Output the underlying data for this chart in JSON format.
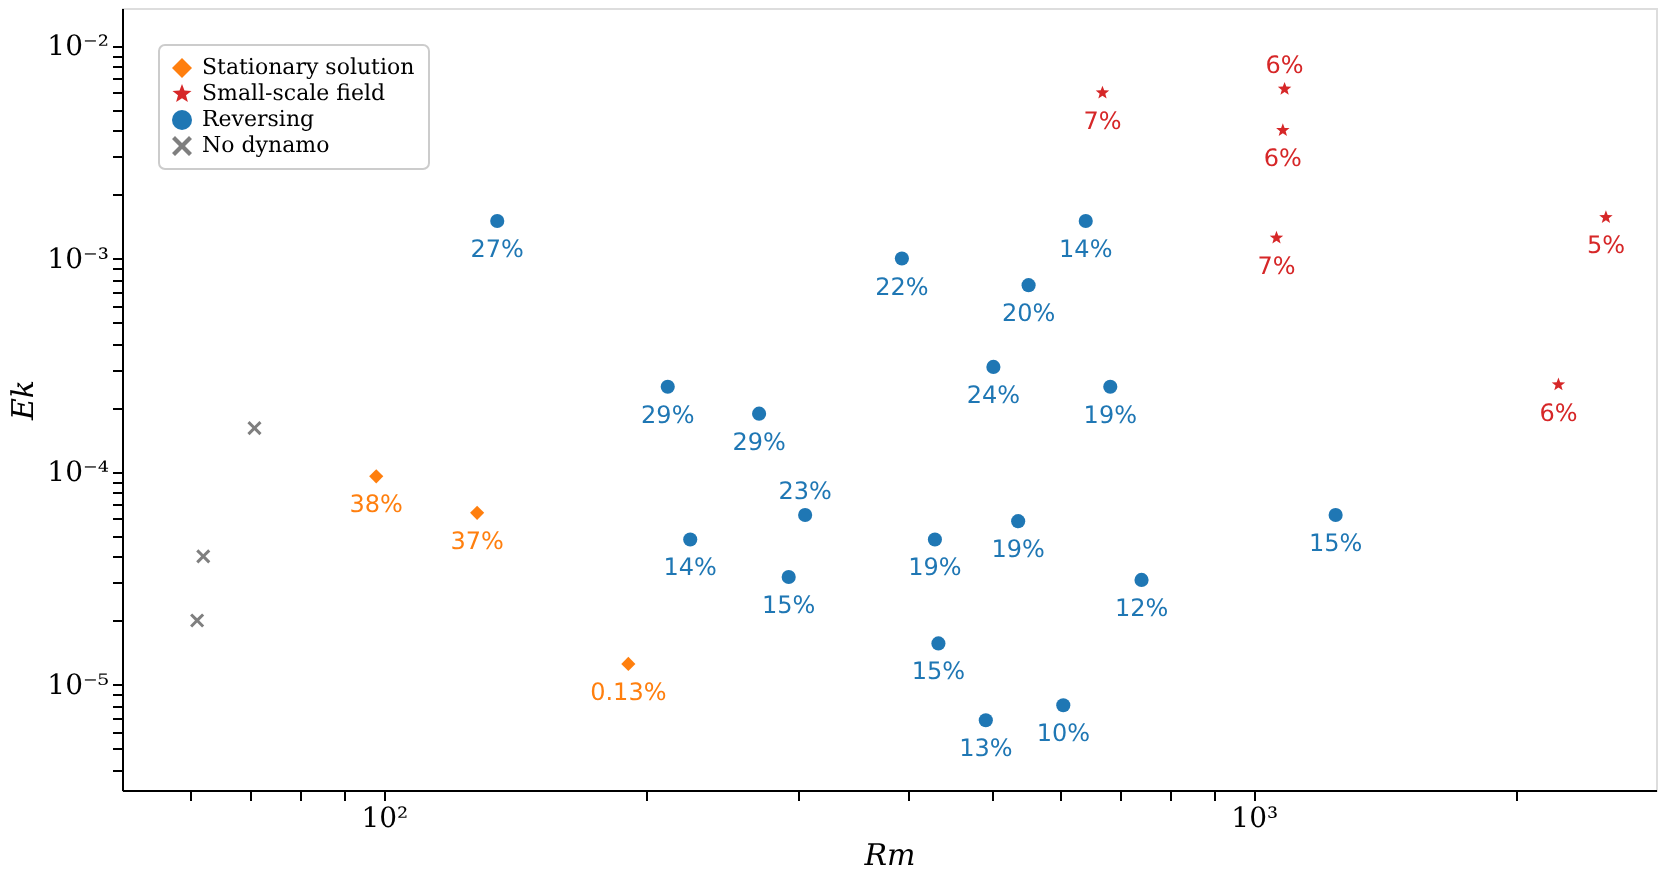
{
  "chart_data": {
    "type": "scatter",
    "xlabel": "Rm",
    "ylabel": "Ek",
    "log": "xy",
    "xlim": [
      50,
      2900
    ],
    "ylim": [
      3.2e-06,
      0.015
    ],
    "xticks": [
      {
        "value": 60,
        "label": null
      },
      {
        "value": 70,
        "label": null
      },
      {
        "value": 80,
        "label": null
      },
      {
        "value": 90,
        "label": null
      },
      {
        "value": 100,
        "label": "10²"
      },
      {
        "value": 200,
        "label": null
      },
      {
        "value": 300,
        "label": null
      },
      {
        "value": 400,
        "label": null
      },
      {
        "value": 500,
        "label": null
      },
      {
        "value": 600,
        "label": null
      },
      {
        "value": 700,
        "label": null
      },
      {
        "value": 800,
        "label": null
      },
      {
        "value": 900,
        "label": null
      },
      {
        "value": 1000,
        "label": "10³"
      },
      {
        "value": 2000,
        "label": null
      }
    ],
    "yticks": [
      {
        "value": 4e-06,
        "label": null
      },
      {
        "value": 5e-06,
        "label": null
      },
      {
        "value": 6e-06,
        "label": null
      },
      {
        "value": 7e-06,
        "label": null
      },
      {
        "value": 8e-06,
        "label": null
      },
      {
        "value": 9e-06,
        "label": null
      },
      {
        "value": 1e-05,
        "label": "10⁻⁵"
      },
      {
        "value": 2e-05,
        "label": null
      },
      {
        "value": 3e-05,
        "label": null
      },
      {
        "value": 4e-05,
        "label": null
      },
      {
        "value": 5e-05,
        "label": null
      },
      {
        "value": 6e-05,
        "label": null
      },
      {
        "value": 7e-05,
        "label": null
      },
      {
        "value": 8e-05,
        "label": null
      },
      {
        "value": 9e-05,
        "label": null
      },
      {
        "value": 0.0001,
        "label": "10⁻⁴"
      },
      {
        "value": 0.0002,
        "label": null
      },
      {
        "value": 0.0003,
        "label": null
      },
      {
        "value": 0.0004,
        "label": null
      },
      {
        "value": 0.0005,
        "label": null
      },
      {
        "value": 0.0006,
        "label": null
      },
      {
        "value": 0.0007,
        "label": null
      },
      {
        "value": 0.0008,
        "label": null
      },
      {
        "value": 0.0009,
        "label": null
      },
      {
        "value": 0.001,
        "label": "10⁻³"
      },
      {
        "value": 0.002,
        "label": null
      },
      {
        "value": 0.003,
        "label": null
      },
      {
        "value": 0.004,
        "label": null
      },
      {
        "value": 0.005,
        "label": null
      },
      {
        "value": 0.006,
        "label": null
      },
      {
        "value": 0.007,
        "label": null
      },
      {
        "value": 0.008,
        "label": null
      },
      {
        "value": 0.009,
        "label": null
      },
      {
        "value": 0.01,
        "label": "10⁻²"
      }
    ],
    "grid": false,
    "legend": "top left",
    "series": [
      {
        "name": "Stationary solution",
        "color": "#ff7f0e",
        "marker": "diamond",
        "x": [
          98,
          128,
          191
        ],
        "values": [
          9.5e-05,
          6.4e-05,
          1.25e-05
        ]
      },
      {
        "name": "Small-scale field",
        "color": "#d62728",
        "marker": "star",
        "x": [
          670,
          1085,
          1080,
          1062,
          2540,
          2240
        ],
        "values": [
          0.006,
          0.00625,
          0.004,
          0.00125,
          0.00156,
          0.000256
        ]
      },
      {
        "name": "Reversing",
        "color": "#1f77b4",
        "marker": "circle",
        "x": [
          135,
          394,
          641,
          551,
          502,
          684,
          212,
          270,
          225,
          305,
          292,
          430,
          536,
          743,
          1242,
          434,
          492,
          604
        ],
        "values": [
          0.0015,
          0.001,
          0.0015,
          0.00075,
          0.00031,
          0.00025,
          0.00025,
          0.000187,
          4.8e-05,
          6.25e-05,
          3.2e-05,
          4.8e-05,
          5.85e-05,
          3.1e-05,
          6.25e-05,
          1.56e-05,
          6.8e-06,
          8e-06
        ]
      },
      {
        "name": "No dynamo",
        "color": "#7f7f7f",
        "marker": "cross",
        "x": [
          71,
          62,
          61
        ],
        "values": [
          0.00016,
          4e-05,
          2e-05
        ]
      }
    ],
    "annotations": [
      {
        "text": "38%",
        "x": 98,
        "y": 9.5e-05
      },
      {
        "text": "37%",
        "x": 128,
        "y": 6.4e-05
      },
      {
        "text": "0.13%",
        "x": 191,
        "y": 1.25e-05
      },
      {
        "text": "7%",
        "x": 670,
        "y": 0.006
      },
      {
        "text": "6%",
        "x": 1085,
        "y": 0.00625
      },
      {
        "text": "6%",
        "x": 1080,
        "y": 0.004
      },
      {
        "text": "7%",
        "x": 1062,
        "y": 0.00125
      },
      {
        "text": "5%",
        "x": 2540,
        "y": 0.00156
      },
      {
        "text": "6%",
        "x": 2240,
        "y": 0.000256
      },
      {
        "text": "27%",
        "x": 135,
        "y": 0.0015
      },
      {
        "text": "22%",
        "x": 394,
        "y": 0.001
      },
      {
        "text": "14%",
        "x": 641,
        "y": 0.0015
      },
      {
        "text": "20%",
        "x": 551,
        "y": 0.00075
      },
      {
        "text": "24%",
        "x": 502,
        "y": 0.00031
      },
      {
        "text": "19%",
        "x": 684,
        "y": 0.00025
      },
      {
        "text": "29%",
        "x": 212,
        "y": 0.00025
      },
      {
        "text": "29%",
        "x": 270,
        "y": 0.000187
      },
      {
        "text": "14%",
        "x": 225,
        "y": 4.8e-05
      },
      {
        "text": "23%",
        "x": 305,
        "y": 6.25e-05
      },
      {
        "text": "15%",
        "x": 292,
        "y": 3.2e-05
      },
      {
        "text": "19%",
        "x": 430,
        "y": 4.8e-05
      },
      {
        "text": "19%",
        "x": 536,
        "y": 5.85e-05
      },
      {
        "text": "12%",
        "x": 743,
        "y": 3.1e-05
      },
      {
        "text": "15%",
        "x": 1242,
        "y": 6.25e-05
      },
      {
        "text": "15%",
        "x": 434,
        "y": 1.56e-05
      },
      {
        "text": "13%",
        "x": 492,
        "y": 6.8e-06
      },
      {
        "text": "10%",
        "x": 604,
        "y": 8e-06
      }
    ]
  }
}
